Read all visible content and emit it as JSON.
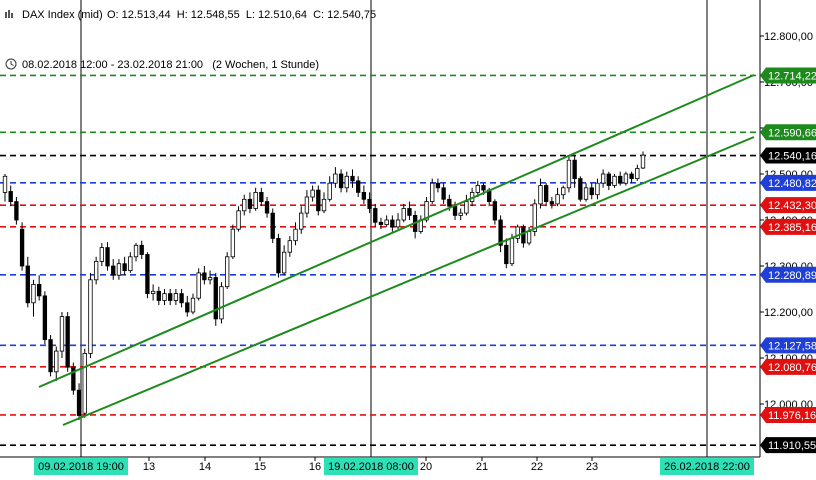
{
  "header": {
    "instrument": "DAX Index (mid)",
    "ohlc": "O: 12.513,44  H: 12.548,55  L: 12.510,64  C: 12.540,75",
    "range": "08.02.2018 12:00 - 23.02.2018 21:00   (2 Wochen, 1 Stunde)"
  },
  "chart_data": {
    "type": "candlestick",
    "ylim": [
      11895,
      12850
    ],
    "y_ticks": [
      {
        "value": 12800,
        "label": "12.800,00"
      },
      {
        "value": 12700,
        "label": "12.700,00"
      },
      {
        "value": 12600,
        "label": "12.600,00"
      },
      {
        "value": 12500,
        "label": "12.500,00"
      },
      {
        "value": 12400,
        "label": "12.400,00"
      },
      {
        "value": 12300,
        "label": "12.300,00"
      },
      {
        "value": 12200,
        "label": "12.200,00"
      },
      {
        "value": 12100,
        "label": "12.100,00"
      },
      {
        "value": 12000,
        "label": "12.000,00"
      }
    ],
    "x_ticks": [
      "13",
      "14",
      "15",
      "16",
      "20",
      "21",
      "22",
      "23"
    ],
    "x_markers": [
      "09.02.2018 19:00",
      "19.02.2018 08:00",
      "26.02.2018 22:00"
    ],
    "levels": [
      {
        "value": 12714.22,
        "label": "12.714,22",
        "color": "#1e8a1e"
      },
      {
        "value": 12590.66,
        "label": "12.590,66",
        "color": "#1e8a1e"
      },
      {
        "value": 12540.16,
        "label": "12.540,16",
        "color": "#000000"
      },
      {
        "value": 12480.82,
        "label": "12.480,82",
        "color": "#1f3fd6"
      },
      {
        "value": 12432.3,
        "label": "12.432,30",
        "color": "#e01010"
      },
      {
        "value": 12385.16,
        "label": "12.385,16",
        "color": "#e01010"
      },
      {
        "value": 12280.89,
        "label": "12.280,89",
        "color": "#1f3fd6"
      },
      {
        "value": 12127.58,
        "label": "12.127,58",
        "color": "#1f3fd6"
      },
      {
        "value": 12080.76,
        "label": "12.080,76",
        "color": "#e01010"
      },
      {
        "value": 11976.16,
        "label": "11.976,16",
        "color": "#e01010"
      },
      {
        "value": 11910.55,
        "label": "11.910,55",
        "color": "#000000"
      }
    ],
    "channel_color": "#1e8a1e",
    "candle_up_color": "#ffffff",
    "candle_down_color": "#000000",
    "candles": [
      [
        12460,
        12495,
        12440,
        12500
      ],
      [
        12462,
        12440,
        12430,
        12475
      ],
      [
        12440,
        12400,
        12390,
        12450
      ],
      [
        12380,
        12300,
        12290,
        12395
      ],
      [
        12300,
        12220,
        12210,
        12320
      ],
      [
        12220,
        12260,
        12190,
        12270
      ],
      [
        12260,
        12235,
        12225,
        12280
      ],
      [
        12235,
        12140,
        12130,
        12245
      ],
      [
        12140,
        12070,
        12060,
        12150
      ],
      [
        12070,
        12115,
        12050,
        12125
      ],
      [
        12115,
        12190,
        12100,
        12200
      ],
      [
        12190,
        12080,
        12070,
        12200
      ],
      [
        12080,
        12030,
        12020,
        12090
      ],
      [
        12030,
        11975,
        11965,
        12045
      ],
      [
        11980,
        12110,
        11970,
        12120
      ],
      [
        12110,
        12270,
        12100,
        12285
      ],
      [
        12270,
        12310,
        12260,
        12320
      ],
      [
        12310,
        12340,
        12300,
        12350
      ],
      [
        12340,
        12300,
        12290,
        12352
      ],
      [
        12300,
        12280,
        12270,
        12315
      ],
      [
        12280,
        12305,
        12270,
        12315
      ],
      [
        12305,
        12290,
        12280,
        12320
      ],
      [
        12290,
        12320,
        12285,
        12330
      ],
      [
        12320,
        12345,
        12310,
        12350
      ],
      [
        12345,
        12325,
        12315,
        12355
      ],
      [
        12325,
        12240,
        12230,
        12330
      ],
      [
        12240,
        12245,
        12225,
        12260
      ],
      [
        12245,
        12225,
        12215,
        12255
      ],
      [
        12225,
        12240,
        12215,
        12250
      ],
      [
        12240,
        12225,
        12215,
        12250
      ],
      [
        12225,
        12240,
        12215,
        12250
      ],
      [
        12240,
        12220,
        12210,
        12250
      ],
      [
        12220,
        12200,
        12190,
        12235
      ],
      [
        12200,
        12230,
        12195,
        12240
      ],
      [
        12230,
        12285,
        12225,
        12295
      ],
      [
        12285,
        12270,
        12260,
        12300
      ],
      [
        12270,
        12275,
        12260,
        12290
      ],
      [
        12275,
        12185,
        12170,
        12285
      ],
      [
        12185,
        12255,
        12175,
        12265
      ],
      [
        12255,
        12320,
        12250,
        12330
      ],
      [
        12320,
        12380,
        12315,
        12390
      ],
      [
        12380,
        12420,
        12375,
        12430
      ],
      [
        12420,
        12445,
        12410,
        12455
      ],
      [
        12445,
        12425,
        12415,
        12460
      ],
      [
        12425,
        12460,
        12420,
        12470
      ],
      [
        12460,
        12440,
        12430,
        12470
      ],
      [
        12440,
        12415,
        12405,
        12450
      ],
      [
        12415,
        12360,
        12350,
        12425
      ],
      [
        12360,
        12285,
        12275,
        12370
      ],
      [
        12285,
        12330,
        12280,
        12345
      ],
      [
        12330,
        12355,
        12320,
        12365
      ],
      [
        12355,
        12380,
        12345,
        12395
      ],
      [
        12380,
        12415,
        12370,
        12430
      ],
      [
        12415,
        12450,
        12405,
        12465
      ],
      [
        12450,
        12465,
        12440,
        12475
      ],
      [
        12465,
        12420,
        12410,
        12475
      ],
      [
        12420,
        12445,
        12415,
        12460
      ],
      [
        12445,
        12480,
        12440,
        12495
      ],
      [
        12480,
        12500,
        12470,
        12515
      ],
      [
        12500,
        12470,
        12460,
        12510
      ],
      [
        12470,
        12495,
        12460,
        12505
      ],
      [
        12495,
        12485,
        12470,
        12510
      ],
      [
        12485,
        12460,
        12450,
        12495
      ],
      [
        12460,
        12445,
        12435,
        12475
      ],
      [
        12445,
        12425,
        12415,
        12460
      ],
      [
        12425,
        12395,
        12385,
        12435
      ],
      [
        12395,
        12390,
        12380,
        12405
      ],
      [
        12390,
        12400,
        12385,
        12410
      ],
      [
        12400,
        12385,
        12375,
        12410
      ],
      [
        12385,
        12400,
        12380,
        12415
      ],
      [
        12400,
        12425,
        12395,
        12435
      ],
      [
        12425,
        12410,
        12400,
        12440
      ],
      [
        12410,
        12375,
        12360,
        12420
      ],
      [
        12375,
        12400,
        12370,
        12410
      ],
      [
        12400,
        12440,
        12395,
        12450
      ],
      [
        12440,
        12480,
        12435,
        12490
      ],
      [
        12480,
        12470,
        12460,
        12490
      ],
      [
        12470,
        12445,
        12435,
        12480
      ],
      [
        12445,
        12430,
        12420,
        12455
      ],
      [
        12430,
        12410,
        12400,
        12440
      ],
      [
        12410,
        12415,
        12400,
        12425
      ],
      [
        12415,
        12440,
        12410,
        12455
      ],
      [
        12440,
        12460,
        12430,
        12470
      ],
      [
        12460,
        12475,
        12450,
        12485
      ],
      [
        12475,
        12465,
        12455,
        12480
      ],
      [
        12465,
        12440,
        12430,
        12470
      ],
      [
        12440,
        12400,
        12390,
        12445
      ],
      [
        12400,
        12345,
        12330,
        12410
      ],
      [
        12345,
        12305,
        12295,
        12360
      ],
      [
        12305,
        12360,
        12300,
        12370
      ],
      [
        12360,
        12385,
        12350,
        12390
      ],
      [
        12385,
        12350,
        12340,
        12390
      ],
      [
        12350,
        12375,
        12345,
        12385
      ],
      [
        12375,
        12435,
        12365,
        12445
      ],
      [
        12435,
        12475,
        12425,
        12490
      ],
      [
        12475,
        12440,
        12430,
        12480
      ],
      [
        12440,
        12435,
        12425,
        12450
      ],
      [
        12435,
        12455,
        12430,
        12470
      ],
      [
        12455,
        12470,
        12445,
        12475
      ],
      [
        12470,
        12530,
        12460,
        12540
      ],
      [
        12530,
        12490,
        12470,
        12540
      ],
      [
        12490,
        12445,
        12440,
        12495
      ],
      [
        12445,
        12470,
        12440,
        12480
      ],
      [
        12470,
        12455,
        12445,
        12480
      ],
      [
        12455,
        12480,
        12445,
        12490
      ],
      [
        12480,
        12500,
        12470,
        12510
      ],
      [
        12500,
        12475,
        12465,
        12505
      ],
      [
        12475,
        12495,
        12470,
        12500
      ],
      [
        12495,
        12480,
        12475,
        12505
      ],
      [
        12480,
        12500,
        12475,
        12505
      ],
      [
        12500,
        12490,
        12480,
        12505
      ],
      [
        12490,
        12512,
        12485,
        12520
      ],
      [
        12513,
        12541,
        12511,
        12549
      ]
    ]
  }
}
